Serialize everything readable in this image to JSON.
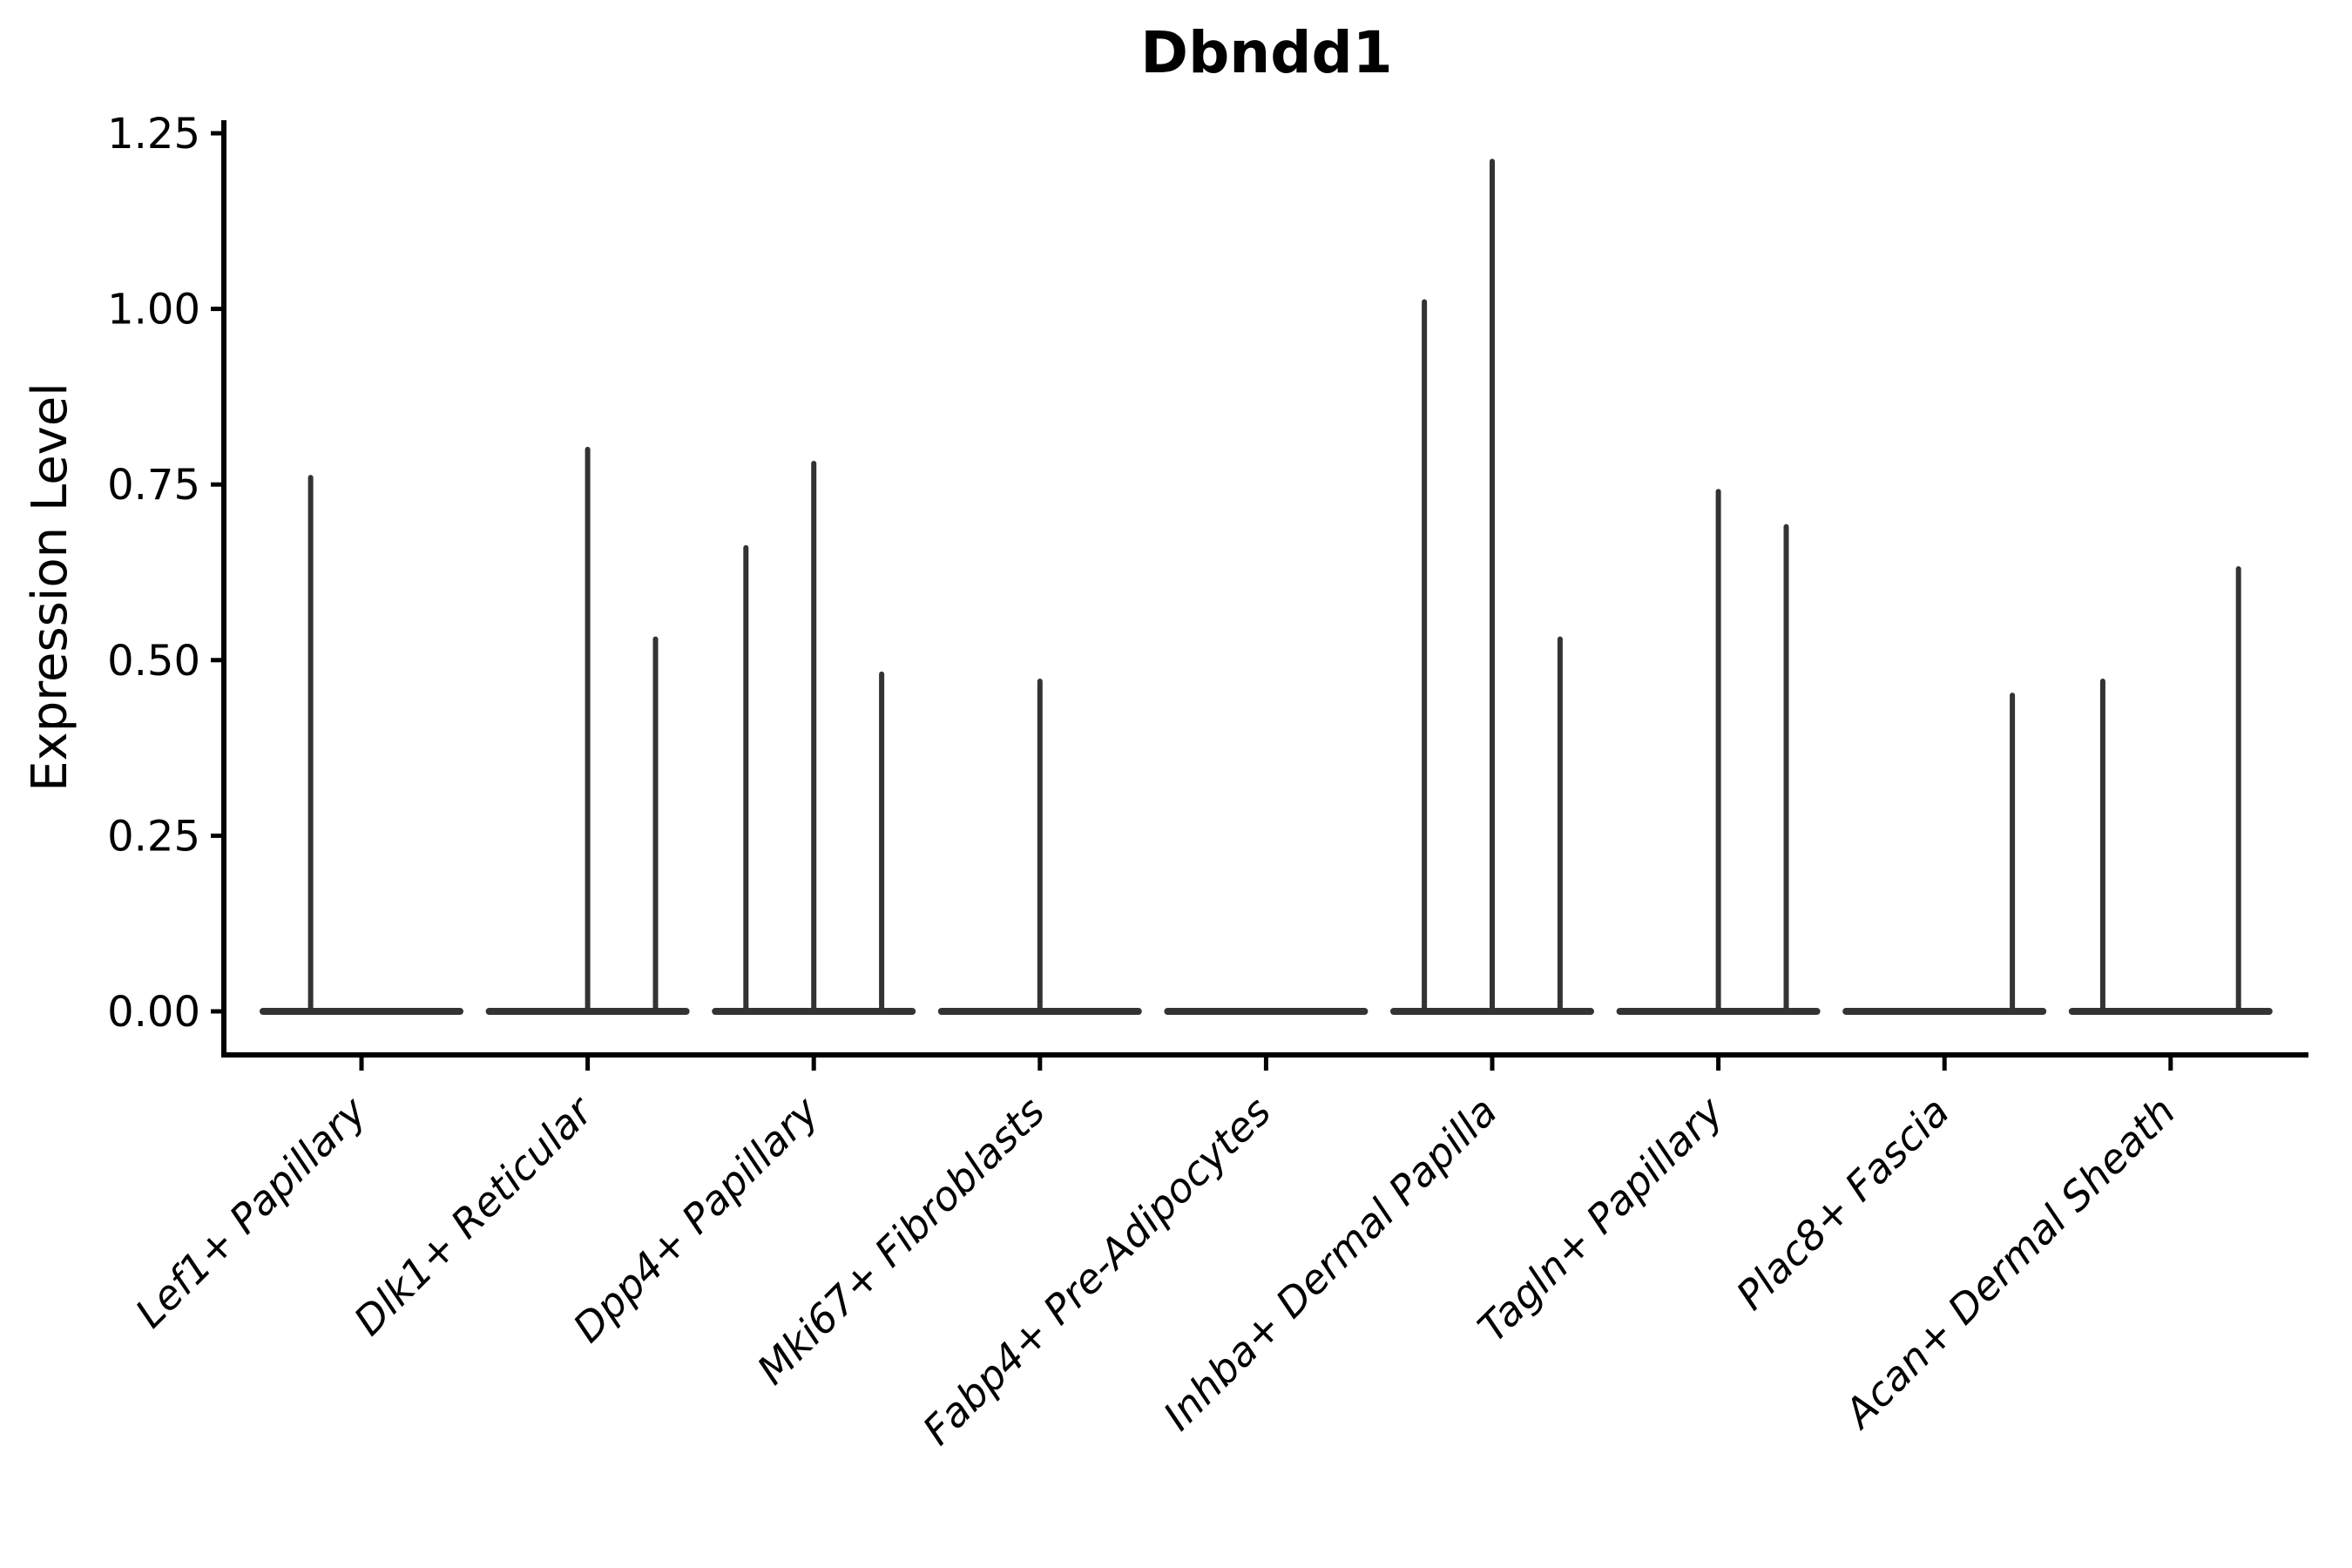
{
  "chart_data": {
    "type": "violin",
    "title": "Dbndd1",
    "ylabel": "Expression Level",
    "xlabel": "",
    "ylim": [
      0,
      1.25
    ],
    "y_ticks": [
      "0.00",
      "0.25",
      "0.50",
      "0.75",
      "1.00",
      "1.25"
    ],
    "grid": "off",
    "legend": "none",
    "violin_color": "#333333",
    "axis_color": "#000000",
    "description": "Violin plot of Dbndd1 expression; expression is near zero in most cells so each violin collapses to a flat base at 0 with thin spikes rising to the maximum expression of each sub-violin.",
    "categories": [
      "Lef1+ Papillary",
      "Dlk1+ Reticular",
      "Dpp4+ Papillary",
      "Mki67+ Fibroblasts",
      "Fabp4+ Pre-Adipocytes",
      "Inhba+ Dermal Papilla",
      "Tagln+ Papillary",
      "Plac8+ Fascia",
      "Acan+ Dermal Sheath"
    ],
    "groups": [
      {
        "label": "Lef1+ Papillary",
        "slots": 2,
        "spikes": [
          {
            "slot": 0,
            "value": 0.76
          }
        ]
      },
      {
        "label": "Dlk1+ Reticular",
        "slots": 3,
        "spikes": [
          {
            "slot": 1,
            "value": 0.8
          },
          {
            "slot": 2,
            "value": 0.53
          }
        ]
      },
      {
        "label": "Dpp4+ Papillary",
        "slots": 3,
        "spikes": [
          {
            "slot": 0,
            "value": 0.66
          },
          {
            "slot": 1,
            "value": 0.78
          },
          {
            "slot": 2,
            "value": 0.48
          }
        ]
      },
      {
        "label": "Mki67+ Fibroblasts",
        "slots": 3,
        "spikes": [
          {
            "slot": 1,
            "value": 0.47
          }
        ]
      },
      {
        "label": "Fabp4+ Pre-Adipocytes",
        "slots": 3,
        "spikes": []
      },
      {
        "label": "Inhba+ Dermal Papilla",
        "slots": 3,
        "spikes": [
          {
            "slot": 0,
            "value": 1.01
          },
          {
            "slot": 1,
            "value": 1.21
          },
          {
            "slot": 2,
            "value": 0.53
          }
        ]
      },
      {
        "label": "Tagln+ Papillary",
        "slots": 3,
        "spikes": [
          {
            "slot": 1,
            "value": 0.74
          },
          {
            "slot": 2,
            "value": 0.69
          }
        ]
      },
      {
        "label": "Plac8+ Fascia",
        "slots": 3,
        "spikes": [
          {
            "slot": 2,
            "value": 0.45
          }
        ]
      },
      {
        "label": "Acan+ Dermal Sheath",
        "slots": 3,
        "spikes": [
          {
            "slot": 0,
            "value": 0.47
          },
          {
            "slot": 2,
            "value": 0.63
          }
        ]
      }
    ]
  }
}
